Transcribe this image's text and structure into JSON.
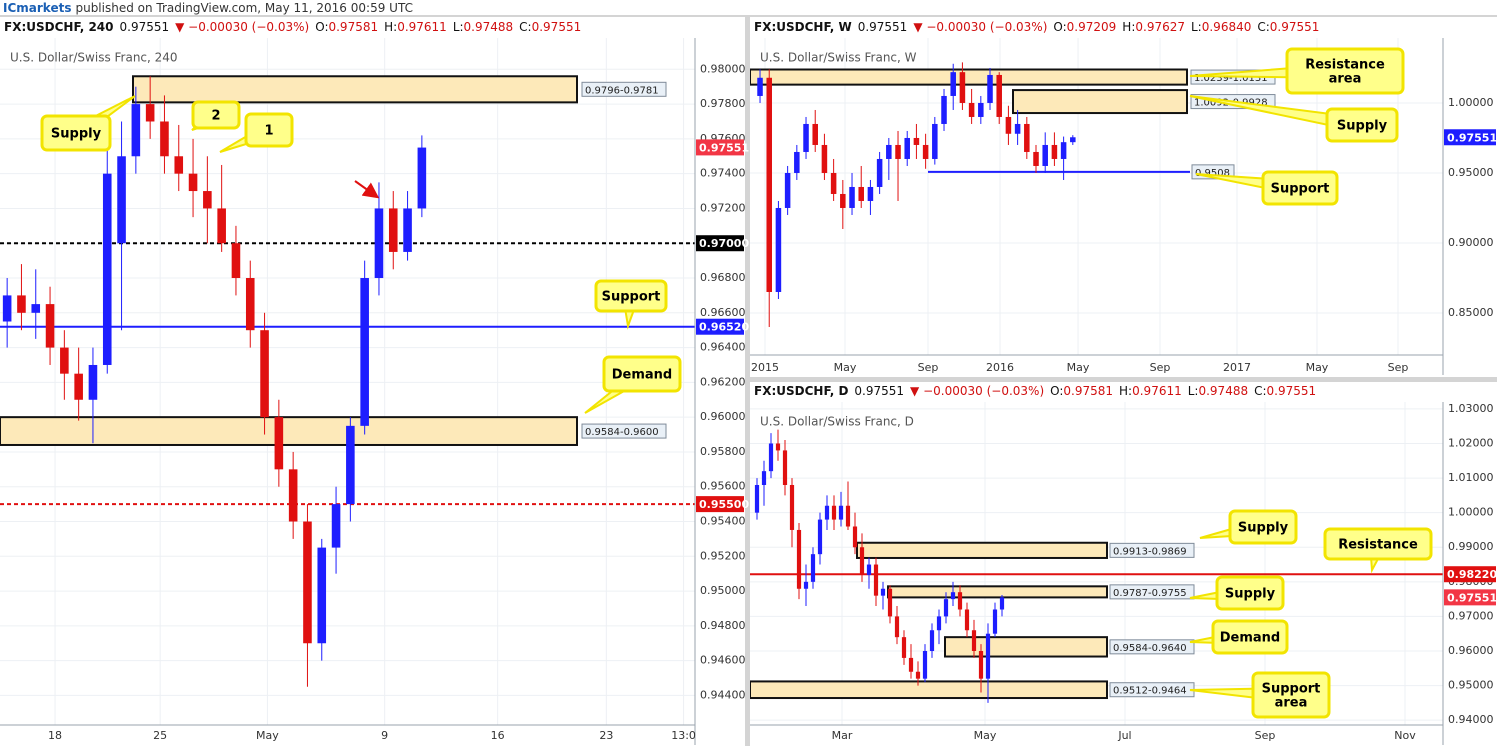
{
  "banner": {
    "author": "ICmarkets",
    "text": "published on TradingView.com, May 11, 2016 00:59 UTC"
  },
  "chart_data": [
    {
      "type": "candlestick",
      "title": "U.S. Dollar/Swiss Franc, 240",
      "header": [
        "FX:USDCHF, 240",
        "0.97551",
        "▼ −0.00030 (−0.03%)",
        "O:",
        "0.97581",
        "H:",
        "0.97611",
        "L:",
        "0.97488",
        "C:",
        "0.97551"
      ],
      "up_color": "#1e1eff",
      "down_color": "#e01010",
      "grid": true,
      "x": [
        0,
        1,
        2,
        3,
        4,
        5,
        6,
        7,
        8,
        9,
        10,
        11,
        12,
        13,
        14,
        15,
        16,
        17,
        18,
        19,
        20,
        21,
        22,
        23,
        24,
        25,
        26,
        27,
        28,
        29
      ],
      "open": [
        0.9655,
        0.967,
        0.966,
        0.9665,
        0.964,
        0.9625,
        0.961,
        0.963,
        0.97,
        0.975,
        0.978,
        0.977,
        0.975,
        0.974,
        0.973,
        0.972,
        0.97,
        0.968,
        0.965,
        0.96,
        0.957,
        0.954,
        0.947,
        0.9525,
        0.955,
        0.9595,
        0.968,
        0.972,
        0.9695,
        0.972
      ],
      "high": [
        0.968,
        0.9688,
        0.9685,
        0.9675,
        0.965,
        0.964,
        0.964,
        0.976,
        0.977,
        0.979,
        0.9796,
        0.9785,
        0.9768,
        0.976,
        0.975,
        0.9745,
        0.971,
        0.969,
        0.966,
        0.961,
        0.958,
        0.955,
        0.953,
        0.956,
        0.96,
        0.969,
        0.9735,
        0.973,
        0.973,
        0.9762
      ],
      "low": [
        0.964,
        0.965,
        0.9645,
        0.963,
        0.961,
        0.9598,
        0.9585,
        0.9625,
        0.965,
        0.974,
        0.976,
        0.974,
        0.973,
        0.9715,
        0.97,
        0.9695,
        0.967,
        0.964,
        0.959,
        0.956,
        0.953,
        0.9445,
        0.946,
        0.951,
        0.954,
        0.959,
        0.967,
        0.9685,
        0.969,
        0.9715
      ],
      "close": [
        0.967,
        0.966,
        0.9665,
        0.964,
        0.9625,
        0.961,
        0.963,
        0.974,
        0.975,
        0.978,
        0.977,
        0.975,
        0.974,
        0.973,
        0.972,
        0.97,
        0.968,
        0.965,
        0.96,
        0.957,
        0.954,
        0.947,
        0.9525,
        0.955,
        0.9595,
        0.968,
        0.972,
        0.9695,
        0.972,
        0.9755
      ],
      "xlim": [
        -0.5,
        48.1
      ],
      "xticks": [
        {
          "value": 3.35,
          "label": "18"
        },
        {
          "value": 10.7,
          "label": "25"
        },
        {
          "value": 18.2,
          "label": "May"
        },
        {
          "value": 26.4,
          "label": "9"
        },
        {
          "value": 34.3,
          "label": "16"
        },
        {
          "value": 41.9,
          "label": "23"
        },
        {
          "value": 47.3,
          "label": "13:0"
        }
      ],
      "ylim": [
        0.9423,
        0.9818
      ],
      "yticks": [
        {
          "value": 0.944,
          "label": "0.94400"
        },
        {
          "value": 0.946,
          "label": "0.94600"
        },
        {
          "value": 0.948,
          "label": "0.94800"
        },
        {
          "value": 0.95,
          "label": "0.95000"
        },
        {
          "value": 0.952,
          "label": "0.95200"
        },
        {
          "value": 0.954,
          "label": "0.95400"
        },
        {
          "value": 0.956,
          "label": "0.95600"
        },
        {
          "value": 0.958,
          "label": "0.95800"
        },
        {
          "value": 0.96,
          "label": "0.96000"
        },
        {
          "value": 0.962,
          "label": "0.96200"
        },
        {
          "value": 0.964,
          "label": "0.96400"
        },
        {
          "value": 0.966,
          "label": "0.96600"
        },
        {
          "value": 0.968,
          "label": "0.96800"
        },
        {
          "value": 0.97,
          "label": "0.97000"
        },
        {
          "value": 0.972,
          "label": "0.97200"
        },
        {
          "value": 0.974,
          "label": "0.97400"
        },
        {
          "value": 0.976,
          "label": "0.97600"
        },
        {
          "value": 0.978,
          "label": "0.97800"
        },
        {
          "value": 0.98,
          "label": "0.98000"
        }
      ],
      "zones": [
        {
          "low": 0.9781,
          "high": 0.9796,
          "label": "0.9796-0.9781"
        },
        {
          "low": 0.9584,
          "high": 0.96,
          "label": "0.9584-0.9600"
        }
      ],
      "lines": [
        {
          "value": 0.97,
          "label": "0.97000",
          "color": "#000000",
          "dash": true,
          "label_on": "axis"
        },
        {
          "value": 0.9652,
          "label": "0.96520",
          "color": "#1e1eff",
          "dash": false,
          "label_on": "axis"
        },
        {
          "value": 0.955,
          "label": "0.95500",
          "color": "#e01010",
          "dash": true,
          "label_on": "axis"
        }
      ],
      "last_price": {
        "value": 0.97551,
        "label": "0.97551",
        "color": "#f23645"
      },
      "callouts": [
        [
          "Supply"
        ],
        [
          "2"
        ],
        [
          "1"
        ],
        [
          "Support"
        ],
        [
          "Demand"
        ]
      ]
    },
    {
      "type": "candlestick",
      "title": "U.S. Dollar/Swiss Franc, W",
      "header": [
        "FX:USDCHF, W",
        "0.97551",
        "▼ −0.00030 (−0.03%)",
        "O:",
        "0.97209",
        "H:",
        "0.97627",
        "L:",
        "0.96840",
        "C:",
        "0.97551"
      ],
      "up_color": "#1e1eff",
      "down_color": "#e01010",
      "grid": true,
      "x": [
        0,
        1,
        2,
        3,
        4,
        5,
        6,
        7,
        8,
        9,
        10,
        11,
        12,
        13,
        14,
        15,
        16,
        17,
        18,
        19,
        20,
        21,
        22,
        23,
        24,
        25,
        26,
        27,
        28,
        29,
        30,
        31,
        32,
        33,
        34
      ],
      "open": [
        1.005,
        1.018,
        0.865,
        0.925,
        0.95,
        0.965,
        0.985,
        0.97,
        0.95,
        0.935,
        0.925,
        0.94,
        0.93,
        0.94,
        0.96,
        0.97,
        0.96,
        0.975,
        0.97,
        0.96,
        0.985,
        1.005,
        1.022,
        1.0,
        0.99,
        1.0,
        1.02,
        0.99,
        0.978,
        0.985,
        0.965,
        0.955,
        0.97,
        0.96,
        0.972
      ],
      "high": [
        1.024,
        1.024,
        0.93,
        0.955,
        0.97,
        0.99,
        0.995,
        0.978,
        0.96,
        0.945,
        0.95,
        0.955,
        0.945,
        0.965,
        0.975,
        0.98,
        0.98,
        0.985,
        0.978,
        0.99,
        1.01,
        1.028,
        1.029,
        1.01,
        1.005,
        1.025,
        1.022,
        0.998,
        0.995,
        0.99,
        0.97,
        0.979,
        0.979,
        0.976,
        0.977
      ],
      "low": [
        1.0,
        0.84,
        0.86,
        0.92,
        0.945,
        0.96,
        0.965,
        0.945,
        0.93,
        0.91,
        0.92,
        0.925,
        0.92,
        0.935,
        0.945,
        0.93,
        0.955,
        0.96,
        0.953,
        0.956,
        0.98,
        0.995,
        0.995,
        0.985,
        0.985,
        0.995,
        0.985,
        0.97,
        0.97,
        0.96,
        0.95,
        0.95,
        0.955,
        0.945,
        0.97
      ],
      "close": [
        1.018,
        0.865,
        0.925,
        0.95,
        0.965,
        0.985,
        0.97,
        0.95,
        0.935,
        0.925,
        0.94,
        0.93,
        0.94,
        0.96,
        0.97,
        0.96,
        0.975,
        0.97,
        0.96,
        0.985,
        1.005,
        1.022,
        1.0,
        0.99,
        1.0,
        1.02,
        0.99,
        0.978,
        0.985,
        0.965,
        0.955,
        0.97,
        0.96,
        0.972,
        0.9755
      ],
      "xlim": [
        -1.09,
        74.24
      ],
      "xticks": [
        {
          "value": 0.54,
          "label": "2015"
        },
        {
          "value": 9.24,
          "label": "May"
        },
        {
          "value": 18.26,
          "label": "Sep"
        },
        {
          "value": 26.09,
          "label": "2016"
        },
        {
          "value": 34.57,
          "label": "May"
        },
        {
          "value": 43.48,
          "label": "Sep"
        },
        {
          "value": 51.85,
          "label": "2017"
        },
        {
          "value": 60.54,
          "label": "May"
        },
        {
          "value": 69.35,
          "label": "Sep"
        }
      ],
      "ylim": [
        0.82,
        1.0464
      ],
      "yticks": [
        {
          "value": 0.85,
          "label": "0.85000"
        },
        {
          "value": 0.9,
          "label": "0.90000"
        },
        {
          "value": 0.95,
          "label": "0.95000"
        },
        {
          "value": 1,
          "label": "1.00000"
        }
      ],
      "zones": [
        {
          "low": 1.0131,
          "high": 1.0239,
          "label": "1.0239-1.0131"
        },
        {
          "low": 0.9928,
          "high": 1.0092,
          "label": "1.0092-0.9928"
        }
      ],
      "lines": [
        {
          "value": 0.9508,
          "label": "0.9508",
          "color": "#1e1eff",
          "dash": false,
          "label_on": "box"
        }
      ],
      "last_price": {
        "value": 0.97551,
        "label": "0.97551",
        "color": "#1e1eff"
      },
      "callouts": [
        [
          "Resistance",
          "area"
        ],
        [
          "Supply"
        ],
        [
          "Support"
        ]
      ]
    },
    {
      "type": "candlestick",
      "title": "U.S. Dollar/Swiss Franc, D",
      "header": [
        "FX:USDCHF, D",
        "0.97551",
        "▼ −0.00030 (−0.03%)",
        "O:",
        "0.97581",
        "H:",
        "0.97611",
        "L:",
        "0.97488",
        "C:",
        "0.97551"
      ],
      "up_color": "#1e1eff",
      "down_color": "#e01010",
      "grid": true,
      "x": [
        0,
        1,
        2,
        3,
        4,
        5,
        6,
        7,
        8,
        9,
        10,
        11,
        12,
        13,
        14,
        15,
        16,
        17,
        18,
        19,
        20,
        21,
        22,
        23,
        24,
        25,
        26,
        27,
        28,
        29,
        30,
        31,
        32,
        33,
        34,
        35
      ],
      "open": [
        1.0,
        1.008,
        1.012,
        1.02,
        1.018,
        1.008,
        0.995,
        0.978,
        0.98,
        0.988,
        0.998,
        1.002,
        0.998,
        1.002,
        0.996,
        0.99,
        0.982,
        0.985,
        0.976,
        0.978,
        0.97,
        0.964,
        0.958,
        0.954,
        0.952,
        0.96,
        0.966,
        0.97,
        0.975,
        0.977,
        0.972,
        0.966,
        0.96,
        0.952,
        0.965,
        0.972
      ],
      "high": [
        1.01,
        1.015,
        1.023,
        1.024,
        1.021,
        1.01,
        0.997,
        0.985,
        0.99,
        1.0,
        1.005,
        1.005,
        1.006,
        1.009,
        1.0,
        0.994,
        0.987,
        0.987,
        0.98,
        0.979,
        0.973,
        0.966,
        0.962,
        0.957,
        0.962,
        0.968,
        0.972,
        0.977,
        0.98,
        0.979,
        0.974,
        0.969,
        0.962,
        0.968,
        0.974,
        0.9762
      ],
      "low": [
        0.998,
        1.002,
        1.01,
        1.015,
        1.005,
        0.99,
        0.975,
        0.973,
        0.978,
        0.985,
        0.995,
        0.995,
        0.996,
        0.995,
        0.988,
        0.98,
        0.978,
        0.973,
        0.972,
        0.968,
        0.962,
        0.956,
        0.952,
        0.95,
        0.951,
        0.958,
        0.962,
        0.968,
        0.973,
        0.97,
        0.964,
        0.958,
        0.948,
        0.945,
        0.964,
        0.97
      ],
      "close": [
        1.008,
        1.012,
        1.02,
        1.018,
        1.008,
        0.995,
        0.978,
        0.98,
        0.988,
        0.998,
        1.002,
        0.998,
        1.002,
        0.996,
        0.99,
        0.982,
        0.985,
        0.976,
        0.978,
        0.97,
        0.964,
        0.958,
        0.954,
        0.952,
        0.96,
        0.966,
        0.97,
        0.975,
        0.977,
        0.972,
        0.966,
        0.96,
        0.952,
        0.965,
        0.972,
        0.9755
      ],
      "xlim": [
        -1,
        98
      ],
      "xticks": [
        {
          "value": 12.14,
          "label": "Mar"
        },
        {
          "value": 32.57,
          "label": "May"
        },
        {
          "value": 52.57,
          "label": "Jul"
        },
        {
          "value": 72.57,
          "label": "Sep"
        },
        {
          "value": 92.57,
          "label": "Nov"
        }
      ],
      "ylim": [
        0.9386,
        1.032
      ],
      "yticks": [
        {
          "value": 0.94,
          "label": "0.94000"
        },
        {
          "value": 0.95,
          "label": "0.95000"
        },
        {
          "value": 0.96,
          "label": "0.96000"
        },
        {
          "value": 0.97,
          "label": "0.97000"
        },
        {
          "value": 0.98,
          "label": "0.98000"
        },
        {
          "value": 0.99,
          "label": "0.99000"
        },
        {
          "value": 1,
          "label": "1.00000"
        },
        {
          "value": 1.01,
          "label": "1.01000"
        },
        {
          "value": 1.02,
          "label": "1.02000"
        },
        {
          "value": 1.03,
          "label": "1.03000"
        }
      ],
      "zones": [
        {
          "low": 0.9869,
          "high": 0.9913,
          "label": "0.9913-0.9869"
        },
        {
          "low": 0.9755,
          "high": 0.9787,
          "label": "0.9787-0.9755"
        },
        {
          "low": 0.9584,
          "high": 0.964,
          "label": "0.9584-0.9640"
        },
        {
          "low": 0.9464,
          "high": 0.9512,
          "label": "0.9512-0.9464"
        }
      ],
      "lines": [
        {
          "value": 0.9822,
          "label": "0.98220",
          "color": "#e01010",
          "dash": false,
          "label_on": "axis"
        }
      ],
      "last_price": {
        "value": 0.97551,
        "label": "0.97551",
        "color": "#f23645"
      },
      "callouts": [
        [
          "Supply"
        ],
        [
          "Resistance"
        ],
        [
          "Supply"
        ],
        [
          "Demand"
        ],
        [
          "Support",
          "area"
        ]
      ]
    }
  ]
}
